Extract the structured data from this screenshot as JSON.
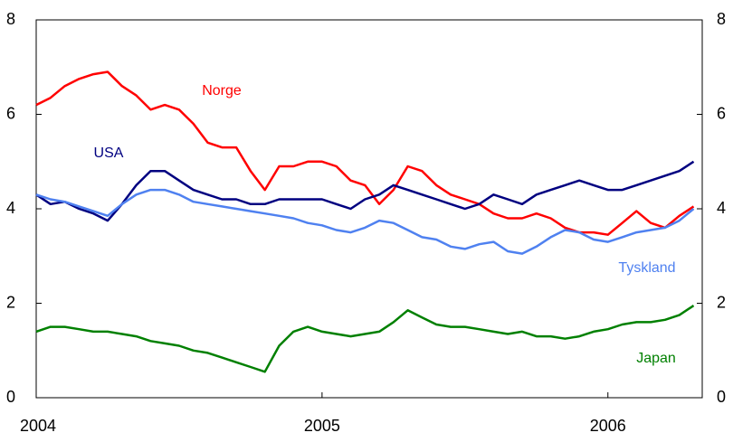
{
  "chart_data": {
    "type": "line",
    "x": [
      2004,
      2004.05,
      2004.1,
      2004.15,
      2004.2,
      2004.25,
      2004.3,
      2004.35,
      2004.4,
      2004.45,
      2004.5,
      2004.55,
      2004.6,
      2004.65,
      2004.7,
      2004.75,
      2004.8,
      2004.85,
      2004.9,
      2004.95,
      2005,
      2005.05,
      2005.1,
      2005.15,
      2005.2,
      2005.25,
      2005.3,
      2005.35,
      2005.4,
      2005.45,
      2005.5,
      2005.55,
      2005.6,
      2005.65,
      2005.7,
      2005.75,
      2005.8,
      2005.85,
      2005.9,
      2005.95,
      2006,
      2006.05,
      2006.1,
      2006.15,
      2006.2,
      2006.25,
      2006.3
    ],
    "series": [
      {
        "name": "Norge",
        "color": "#ff0000",
        "values": [
          6.2,
          6.35,
          6.6,
          6.75,
          6.85,
          6.9,
          6.6,
          6.4,
          6.1,
          6.2,
          6.1,
          5.8,
          5.4,
          5.3,
          5.3,
          4.8,
          4.4,
          4.9,
          4.9,
          5.0,
          5.0,
          4.9,
          4.6,
          4.5,
          4.1,
          4.4,
          4.9,
          4.8,
          4.5,
          4.3,
          4.2,
          4.1,
          3.9,
          3.8,
          3.8,
          3.9,
          3.8,
          3.6,
          3.5,
          3.5,
          3.45,
          3.7,
          3.95,
          3.7,
          3.6,
          3.85,
          4.05
        ]
      },
      {
        "name": "USA",
        "color": "#000080",
        "values": [
          4.3,
          4.1,
          4.15,
          4.0,
          3.9,
          3.75,
          4.1,
          4.5,
          4.8,
          4.8,
          4.6,
          4.4,
          4.3,
          4.2,
          4.2,
          4.1,
          4.1,
          4.2,
          4.2,
          4.2,
          4.2,
          4.1,
          4.0,
          4.2,
          4.3,
          4.5,
          4.4,
          4.3,
          4.2,
          4.1,
          4.0,
          4.1,
          4.3,
          4.2,
          4.1,
          4.3,
          4.4,
          4.5,
          4.6,
          4.5,
          4.4,
          4.4,
          4.5,
          4.6,
          4.7,
          4.8,
          5.0
        ]
      },
      {
        "name": "Tyskland",
        "color": "#4f81f0",
        "values": [
          4.3,
          4.2,
          4.15,
          4.05,
          3.95,
          3.85,
          4.1,
          4.3,
          4.4,
          4.4,
          4.3,
          4.15,
          4.1,
          4.05,
          4.0,
          3.95,
          3.9,
          3.85,
          3.8,
          3.7,
          3.65,
          3.55,
          3.5,
          3.6,
          3.75,
          3.7,
          3.55,
          3.4,
          3.35,
          3.2,
          3.15,
          3.25,
          3.3,
          3.1,
          3.05,
          3.2,
          3.4,
          3.55,
          3.5,
          3.35,
          3.3,
          3.4,
          3.5,
          3.55,
          3.6,
          3.75,
          4.0
        ]
      },
      {
        "name": "Japan",
        "color": "#008000",
        "values": [
          1.4,
          1.5,
          1.5,
          1.45,
          1.4,
          1.4,
          1.35,
          1.3,
          1.2,
          1.15,
          1.1,
          1.0,
          0.95,
          0.85,
          0.75,
          0.65,
          0.55,
          1.1,
          1.4,
          1.5,
          1.4,
          1.35,
          1.3,
          1.35,
          1.4,
          1.6,
          1.85,
          1.7,
          1.55,
          1.5,
          1.5,
          1.45,
          1.4,
          1.35,
          1.4,
          1.3,
          1.3,
          1.25,
          1.3,
          1.4,
          1.45,
          1.55,
          1.6,
          1.6,
          1.65,
          1.75,
          1.95
        ]
      }
    ],
    "xlim": [
      2004,
      2006.33
    ],
    "xticks": [
      2004,
      2005,
      2006
    ],
    "ylim": [
      0,
      8
    ],
    "yticks": [
      0,
      2,
      4,
      6,
      8
    ],
    "y2lim": [
      0,
      8
    ],
    "y2ticks": [
      0,
      2,
      4,
      6,
      8
    ]
  }
}
